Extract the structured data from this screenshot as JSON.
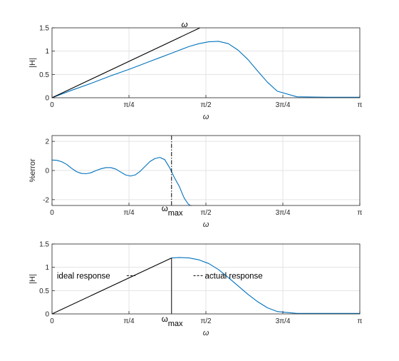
{
  "colors": {
    "series": "#0072bd",
    "ideal": "#000000",
    "grid": "#e3e3e3",
    "axis": "#262626"
  },
  "x_tick_labels": [
    "0",
    "π/4",
    "π/2",
    "3π/4",
    "π"
  ],
  "chart_data": [
    {
      "type": "line",
      "xlabel": "ω",
      "ylabel": "|H|",
      "xlim": [
        0,
        3.14159
      ],
      "ylim": [
        0,
        1.5
      ],
      "yticks": [
        "0",
        "0.5",
        "1",
        "1.5"
      ],
      "grid": true,
      "series": [
        {
          "color": "#0072bd",
          "x": [
            0,
            0.2,
            0.4,
            0.6,
            0.8,
            1.0,
            1.1,
            1.2,
            1.25,
            1.3,
            1.35,
            1.4,
            1.5,
            1.6,
            1.7,
            1.8,
            1.9,
            2.0,
            2.1,
            2.2,
            2.3,
            2.5,
            2.8,
            3.14159
          ],
          "y": [
            0,
            0.16,
            0.31,
            0.47,
            0.62,
            0.78,
            0.86,
            0.94,
            0.98,
            1.02,
            1.06,
            1.1,
            1.16,
            1.2,
            1.21,
            1.16,
            1.02,
            0.82,
            0.57,
            0.33,
            0.14,
            0.02,
            0.01,
            0.01
          ]
        },
        {
          "color": "#000000",
          "x": [
            0,
            1.51
          ],
          "y": [
            0,
            1.5
          ]
        }
      ],
      "annotations": [
        {
          "text": "ω",
          "x": 1.32,
          "y": 1.58
        }
      ]
    },
    {
      "type": "line",
      "xlabel": "ω",
      "ylabel": "%error",
      "xlim": [
        0,
        3.14159
      ],
      "ylim": [
        -2.4,
        2.4
      ],
      "yticks": [
        "-2",
        "0",
        "2"
      ],
      "grid": true,
      "series": [
        {
          "color": "#0072bd",
          "x": [
            0,
            0.05,
            0.1,
            0.15,
            0.2,
            0.25,
            0.3,
            0.35,
            0.4,
            0.45,
            0.5,
            0.55,
            0.6,
            0.65,
            0.7,
            0.75,
            0.8,
            0.85,
            0.9,
            0.95,
            1.0,
            1.05,
            1.1,
            1.15,
            1.2,
            1.25,
            1.3,
            1.33,
            1.35,
            1.37,
            1.39,
            1.41,
            1.42,
            1.43
          ],
          "y": [
            0.72,
            0.7,
            0.6,
            0.42,
            0.15,
            -0.08,
            -0.2,
            -0.22,
            -0.15,
            0.0,
            0.12,
            0.2,
            0.2,
            0.1,
            -0.1,
            -0.3,
            -0.38,
            -0.3,
            -0.05,
            0.28,
            0.62,
            0.82,
            0.9,
            0.75,
            0.2,
            -0.5,
            -1.1,
            -1.6,
            -1.9,
            -2.1,
            -2.3,
            -2.4,
            -2.4,
            -2.4
          ]
        }
      ],
      "vline": {
        "x": 1.22,
        "style": "dash-dot",
        "color": "#000000"
      },
      "annotations": [
        {
          "text": "ω",
          "sub": "max",
          "x": 1.22,
          "y": -2.65
        }
      ]
    },
    {
      "type": "line",
      "xlabel": "ω",
      "ylabel": "|H|",
      "xlim": [
        0,
        3.14159
      ],
      "ylim": [
        0,
        1.5
      ],
      "yticks": [
        "0",
        "0.5",
        "1",
        "1.5"
      ],
      "grid": true,
      "series": [
        {
          "color": "#0072bd",
          "x": [
            1.22,
            1.3,
            1.4,
            1.5,
            1.6,
            1.7,
            1.8,
            1.9,
            2.0,
            2.1,
            2.2,
            2.3,
            2.5,
            2.8,
            3.14159
          ],
          "y": [
            1.2,
            1.21,
            1.2,
            1.16,
            1.08,
            0.95,
            0.78,
            0.6,
            0.42,
            0.26,
            0.13,
            0.05,
            0.01,
            0.01,
            0.01
          ]
        },
        {
          "color": "#000000",
          "x": [
            0,
            1.22
          ],
          "y": [
            0,
            1.2
          ]
        }
      ],
      "vline": {
        "x": 1.22,
        "style": "solid",
        "color": "#000000",
        "y_top": 1.2
      },
      "annotations": [
        {
          "text": "ideal response",
          "leader": "dashed",
          "x": 0.05,
          "y": 0.82
        },
        {
          "text": "actual response",
          "leader": "dashed",
          "x": 1.56,
          "y": 0.82
        },
        {
          "text": "ω",
          "sub": "max",
          "x": 1.22,
          "y": -0.12
        }
      ]
    }
  ]
}
